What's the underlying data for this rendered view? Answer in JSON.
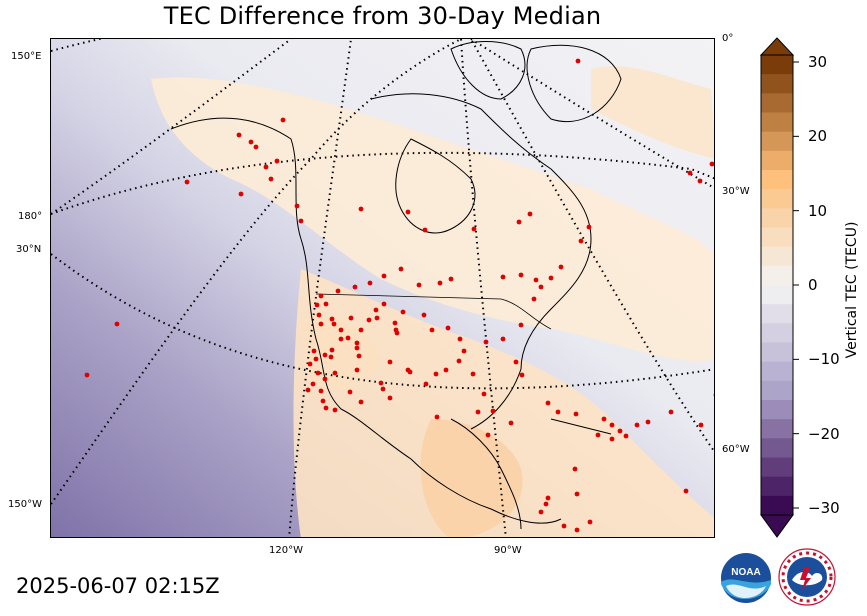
{
  "title": "TEC Difference from 30-Day Median",
  "timestamp": "2025-06-07 02:15Z",
  "colorbar": {
    "label": "Vertical TEC (TECU)",
    "range": [
      -30,
      30
    ],
    "ticks": [
      "30",
      "20",
      "10",
      "0",
      "−10",
      "−20",
      "−30"
    ],
    "extend": "both",
    "low_color": "#3a0a52",
    "mid_color": "#f4f4f4",
    "high_color": "#7a3d0a"
  },
  "graticule_labels": {
    "lon_150e": "150°E",
    "lon_180": "180°",
    "lat_30n": "30°N",
    "lon_150w": "150°W",
    "lon_0": "0°",
    "lon_30w": "30°W",
    "lon_60w": "60°W",
    "lon_120w": "120°W",
    "lon_90w": "90°W"
  },
  "map": {
    "projection": "polar stereographic",
    "graticule_style": "dotted",
    "station_marker_color": "#e00000",
    "station_marker": "red-dot"
  },
  "logos": [
    "noaa-logo",
    "national-weather-service-logo"
  ]
}
